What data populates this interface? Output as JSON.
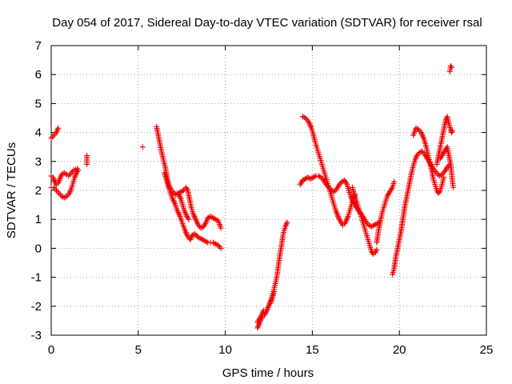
{
  "chart_data": {
    "type": "scatter",
    "title": "Day 054 of 2017, Sidereal Day-to-day VTEC variation (SDTVAR) for receiver rsal",
    "xlabel": "GPS time / hours",
    "ylabel": "SDTVAR / TECUs",
    "xlim": [
      0,
      25
    ],
    "ylim": [
      -3,
      7
    ],
    "xticks": [
      0,
      5,
      10,
      15,
      20,
      25
    ],
    "yticks": [
      -3,
      -2,
      -1,
      0,
      1,
      2,
      3,
      4,
      5,
      6,
      7
    ],
    "grid": true,
    "marker": "+",
    "color": "#ee0000",
    "series": [
      {
        "name": "SDTVAR",
        "segments": [
          [
            [
              0.0,
              3.8
            ],
            [
              0.15,
              3.9
            ],
            [
              0.3,
              4.0
            ],
            [
              0.4,
              4.15
            ]
          ],
          [
            [
              0.0,
              2.5
            ],
            [
              0.1,
              2.45
            ],
            [
              0.2,
              2.3
            ],
            [
              0.3,
              2.2
            ],
            [
              0.4,
              2.25
            ],
            [
              0.5,
              2.4
            ],
            [
              0.6,
              2.55
            ],
            [
              0.75,
              2.6
            ],
            [
              0.9,
              2.55
            ],
            [
              1.0,
              2.5
            ],
            [
              1.15,
              2.6
            ],
            [
              1.3,
              2.7
            ],
            [
              1.5,
              2.75
            ]
          ],
          [
            [
              0.0,
              2.1
            ],
            [
              0.15,
              2.1
            ],
            [
              0.3,
              2.0
            ],
            [
              0.45,
              1.9
            ],
            [
              0.6,
              1.8
            ],
            [
              0.75,
              1.75
            ],
            [
              0.9,
              1.8
            ],
            [
              1.05,
              1.9
            ],
            [
              1.15,
              2.05
            ],
            [
              1.25,
              2.25
            ],
            [
              1.35,
              2.45
            ],
            [
              1.45,
              2.6
            ],
            [
              1.55,
              2.7
            ]
          ],
          [
            [
              2.05,
              3.2
            ],
            [
              2.05,
              2.9
            ]
          ],
          [
            [
              5.25,
              3.5
            ]
          ],
          [
            [
              6.05,
              4.2
            ],
            [
              6.15,
              3.9
            ],
            [
              6.25,
              3.6
            ],
            [
              6.35,
              3.3
            ],
            [
              6.45,
              3.05
            ],
            [
              6.55,
              2.8
            ],
            [
              6.65,
              2.5
            ],
            [
              6.75,
              2.2
            ],
            [
              6.85,
              2.05
            ],
            [
              7.0,
              1.95
            ],
            [
              7.15,
              1.85
            ],
            [
              7.3,
              1.9
            ],
            [
              7.45,
              1.95
            ],
            [
              7.6,
              2.0
            ],
            [
              7.75,
              2.1
            ],
            [
              7.85,
              2.0
            ],
            [
              7.95,
              1.7
            ],
            [
              8.05,
              1.4
            ],
            [
              8.15,
              1.2
            ],
            [
              8.3,
              1.0
            ],
            [
              8.45,
              0.8
            ],
            [
              8.6,
              0.7
            ],
            [
              8.75,
              0.75
            ],
            [
              8.9,
              0.9
            ],
            [
              9.0,
              1.05
            ],
            [
              9.15,
              1.1
            ],
            [
              9.3,
              1.05
            ],
            [
              9.45,
              1.0
            ],
            [
              9.6,
              0.95
            ],
            [
              9.75,
              0.7
            ]
          ],
          [
            [
              6.5,
              2.6
            ],
            [
              6.65,
              2.3
            ],
            [
              6.8,
              2.0
            ],
            [
              6.95,
              1.75
            ],
            [
              7.1,
              1.55
            ],
            [
              7.25,
              1.3
            ],
            [
              7.4,
              1.1
            ],
            [
              7.55,
              0.85
            ],
            [
              7.7,
              0.6
            ],
            [
              7.85,
              0.4
            ],
            [
              8.0,
              0.3
            ],
            [
              8.1,
              0.45
            ],
            [
              8.25,
              0.5
            ],
            [
              8.4,
              0.4
            ],
            [
              8.55,
              0.35
            ],
            [
              8.7,
              0.3
            ],
            [
              8.85,
              0.25
            ],
            [
              9.0,
              0.2
            ],
            [
              9.15,
              0.2
            ],
            [
              9.3,
              0.2
            ],
            [
              9.45,
              0.15
            ],
            [
              9.6,
              0.1
            ],
            [
              9.75,
              0.0
            ]
          ],
          [
            [
              7.3,
              1.9
            ],
            [
              7.45,
              1.7
            ],
            [
              7.55,
              1.5
            ],
            [
              7.65,
              1.3
            ],
            [
              7.8,
              1.1
            ],
            [
              7.9,
              1.0
            ]
          ],
          [
            [
              11.85,
              -2.75
            ],
            [
              11.95,
              -2.6
            ],
            [
              12.05,
              -2.45
            ],
            [
              12.15,
              -2.35
            ],
            [
              12.25,
              -2.3
            ],
            [
              12.35,
              -2.2
            ],
            [
              12.45,
              -2.05
            ],
            [
              12.55,
              -1.9
            ],
            [
              12.65,
              -1.75
            ],
            [
              12.75,
              -1.55
            ],
            [
              12.82,
              -1.35
            ],
            [
              12.9,
              -1.15
            ],
            [
              12.98,
              -0.9
            ],
            [
              13.05,
              -0.6
            ],
            [
              13.12,
              -0.3
            ],
            [
              13.2,
              0.0
            ],
            [
              13.28,
              0.3
            ],
            [
              13.35,
              0.55
            ],
            [
              13.45,
              0.75
            ],
            [
              13.55,
              0.9
            ]
          ],
          [
            [
              11.85,
              -2.55
            ],
            [
              11.95,
              -2.45
            ],
            [
              12.1,
              -2.3
            ],
            [
              12.2,
              -2.15
            ]
          ],
          [
            [
              12.6,
              -1.9
            ],
            [
              12.7,
              -1.7
            ],
            [
              12.8,
              -1.5
            ]
          ],
          [
            [
              14.3,
              2.2
            ],
            [
              14.45,
              2.35
            ],
            [
              14.6,
              2.4
            ],
            [
              14.75,
              2.45
            ],
            [
              14.9,
              2.4
            ],
            [
              15.05,
              2.45
            ],
            [
              15.2,
              2.5
            ],
            [
              15.35,
              2.5
            ],
            [
              15.5,
              2.45
            ],
            [
              15.65,
              2.35
            ],
            [
              15.8,
              2.2
            ],
            [
              15.95,
              2.1
            ],
            [
              16.1,
              2.0
            ],
            [
              16.25,
              1.95
            ],
            [
              16.4,
              2.05
            ],
            [
              16.55,
              2.2
            ],
            [
              16.7,
              2.3
            ],
            [
              16.85,
              2.35
            ],
            [
              17.0,
              2.2
            ],
            [
              17.1,
              2.0
            ],
            [
              17.2,
              1.8
            ],
            [
              17.35,
              1.6
            ],
            [
              17.5,
              1.45
            ],
            [
              17.65,
              1.3
            ],
            [
              17.8,
              1.2
            ],
            [
              17.95,
              1.05
            ],
            [
              18.1,
              0.9
            ],
            [
              18.25,
              0.8
            ],
            [
              18.4,
              0.75
            ],
            [
              18.55,
              0.8
            ],
            [
              18.7,
              0.85
            ],
            [
              18.85,
              0.9
            ]
          ],
          [
            [
              14.45,
              4.55
            ],
            [
              14.6,
              4.5
            ],
            [
              14.75,
              4.4
            ],
            [
              14.85,
              4.3
            ],
            [
              14.95,
              4.15
            ],
            [
              15.05,
              3.95
            ],
            [
              15.15,
              3.7
            ],
            [
              15.25,
              3.5
            ],
            [
              15.35,
              3.3
            ],
            [
              15.45,
              3.1
            ],
            [
              15.55,
              2.9
            ],
            [
              15.65,
              2.7
            ],
            [
              15.75,
              2.5
            ],
            [
              15.85,
              2.3
            ],
            [
              15.95,
              2.1
            ],
            [
              16.05,
              1.9
            ],
            [
              16.15,
              1.7
            ],
            [
              16.25,
              1.5
            ],
            [
              16.35,
              1.3
            ],
            [
              16.45,
              1.15
            ],
            [
              16.55,
              1.0
            ],
            [
              16.65,
              0.9
            ],
            [
              16.75,
              0.8
            ],
            [
              16.85,
              0.85
            ],
            [
              16.95,
              0.95
            ],
            [
              17.05,
              1.1
            ],
            [
              17.15,
              1.3
            ],
            [
              17.25,
              1.5
            ],
            [
              17.35,
              1.7
            ],
            [
              17.45,
              1.85
            ]
          ],
          [
            [
              17.3,
              2.1
            ],
            [
              17.4,
              1.9
            ],
            [
              17.5,
              1.7
            ],
            [
              17.6,
              1.5
            ],
            [
              17.7,
              1.3
            ],
            [
              17.8,
              1.1
            ],
            [
              17.9,
              0.9
            ],
            [
              18.0,
              0.7
            ],
            [
              18.1,
              0.5
            ],
            [
              18.2,
              0.3
            ],
            [
              18.3,
              0.1
            ],
            [
              18.4,
              -0.1
            ],
            [
              18.5,
              -0.2
            ],
            [
              18.6,
              -0.15
            ],
            [
              18.7,
              -0.05
            ]
          ],
          [
            [
              18.7,
              0.2
            ],
            [
              18.8,
              0.6
            ],
            [
              18.9,
              0.9
            ],
            [
              19.0,
              1.2
            ],
            [
              19.1,
              1.4
            ],
            [
              19.2,
              1.6
            ],
            [
              19.3,
              1.8
            ],
            [
              19.4,
              1.9
            ],
            [
              19.5,
              2.0
            ],
            [
              19.6,
              2.1
            ],
            [
              19.7,
              2.3
            ]
          ],
          [
            [
              19.6,
              -0.9
            ],
            [
              19.7,
              -0.7
            ],
            [
              19.8,
              -0.3
            ],
            [
              19.9,
              0.0
            ],
            [
              20.0,
              0.3
            ],
            [
              20.1,
              0.6
            ],
            [
              20.2,
              1.0
            ],
            [
              20.3,
              1.4
            ],
            [
              20.4,
              1.7
            ],
            [
              20.5,
              2.0
            ],
            [
              20.6,
              2.3
            ],
            [
              20.7,
              2.6
            ],
            [
              20.8,
              2.85
            ],
            [
              20.9,
              3.05
            ],
            [
              21.0,
              3.2
            ],
            [
              21.15,
              3.3
            ],
            [
              21.3,
              3.35
            ],
            [
              21.45,
              3.25
            ],
            [
              21.6,
              3.1
            ],
            [
              21.75,
              2.95
            ],
            [
              21.9,
              2.8
            ],
            [
              22.0,
              2.7
            ],
            [
              22.15,
              2.6
            ],
            [
              22.3,
              2.5
            ],
            [
              22.45,
              2.55
            ],
            [
              22.6,
              2.65
            ],
            [
              22.75,
              2.8
            ],
            [
              22.9,
              2.9
            ]
          ],
          [
            [
              20.8,
              3.9
            ],
            [
              20.95,
              4.15
            ],
            [
              21.1,
              4.1
            ],
            [
              21.25,
              4.0
            ],
            [
              21.4,
              3.8
            ],
            [
              21.55,
              3.5
            ],
            [
              21.65,
              3.2
            ],
            [
              21.75,
              3.0
            ],
            [
              21.85,
              2.7
            ],
            [
              21.95,
              2.4
            ],
            [
              22.05,
              2.2
            ],
            [
              22.15,
              2.0
            ],
            [
              22.25,
              1.9
            ],
            [
              22.35,
              2.0
            ],
            [
              22.45,
              2.2
            ],
            [
              22.55,
              2.45
            ]
          ],
          [
            [
              22.15,
              2.9
            ],
            [
              22.25,
              3.2
            ],
            [
              22.35,
              3.5
            ],
            [
              22.45,
              3.8
            ],
            [
              22.55,
              4.1
            ],
            [
              22.65,
              4.4
            ],
            [
              22.75,
              4.55
            ],
            [
              22.85,
              4.3
            ],
            [
              22.95,
              4.1
            ],
            [
              23.0,
              4.0
            ],
            [
              23.05,
              4.05
            ]
          ],
          [
            [
              22.35,
              3.1
            ],
            [
              22.45,
              3.2
            ],
            [
              22.55,
              3.3
            ],
            [
              22.65,
              3.4
            ],
            [
              22.75,
              3.5
            ],
            [
              22.85,
              3.2
            ],
            [
              22.95,
              2.9
            ],
            [
              23.0,
              2.6
            ],
            [
              23.05,
              2.3
            ],
            [
              23.1,
              2.1
            ]
          ],
          [
            [
              22.9,
              6.1
            ],
            [
              22.95,
              6.3
            ],
            [
              23.0,
              6.25
            ]
          ]
        ]
      }
    ]
  }
}
